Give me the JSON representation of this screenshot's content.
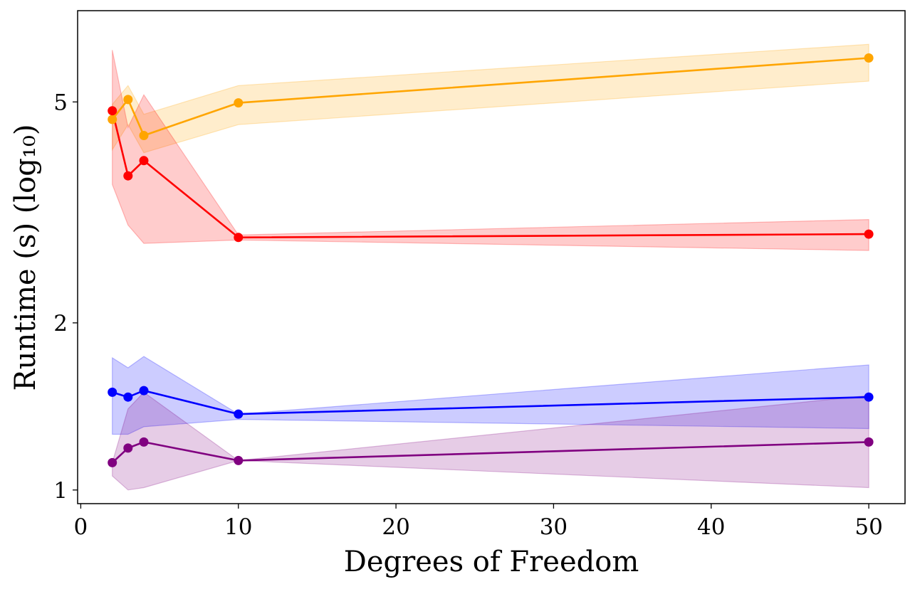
{
  "chart_data": {
    "type": "line",
    "title": "",
    "xlabel": "Degrees of Freedom",
    "ylabel": "Runtime (s) (log₁₀)",
    "yscale": "log",
    "xlim": [
      -0.2,
      52.3
    ],
    "ylim": [
      0.945,
      7.3
    ],
    "xticks": [
      0,
      10,
      20,
      30,
      40,
      50
    ],
    "xtick_labels": [
      "0",
      "10",
      "20",
      "30",
      "40",
      "50"
    ],
    "yticks": [
      1,
      2,
      5
    ],
    "ytick_labels": [
      "1",
      "2",
      "5"
    ],
    "grid": false,
    "legend": null,
    "x": [
      2,
      3,
      4,
      10,
      50
    ],
    "series": [
      {
        "color": "#ffa500",
        "values": [
          4.65,
          5.05,
          4.35,
          4.98,
          6.0
        ],
        "lower": [
          4.1,
          4.55,
          4.05,
          4.55,
          5.45
        ],
        "upper": [
          4.95,
          5.35,
          4.75,
          5.35,
          6.35
        ]
      },
      {
        "color": "#ff0000",
        "values": [
          4.82,
          3.68,
          3.92,
          2.85,
          2.89
        ],
        "lower": [
          3.55,
          3.0,
          2.78,
          2.82,
          2.7
        ],
        "upper": [
          6.2,
          4.5,
          5.15,
          2.88,
          3.07
        ]
      },
      {
        "color": "#0000ff",
        "values": [
          1.5,
          1.47,
          1.51,
          1.37,
          1.47
        ],
        "lower": [
          1.26,
          1.26,
          1.3,
          1.34,
          1.29
        ],
        "upper": [
          1.73,
          1.66,
          1.74,
          1.37,
          1.68
        ]
      },
      {
        "color": "#800080",
        "values": [
          1.12,
          1.19,
          1.22,
          1.13,
          1.22
        ],
        "lower": [
          1.06,
          1.0,
          1.01,
          1.13,
          1.01
        ],
        "upper": [
          1.12,
          1.4,
          1.5,
          1.13,
          1.48
        ]
      }
    ]
  }
}
